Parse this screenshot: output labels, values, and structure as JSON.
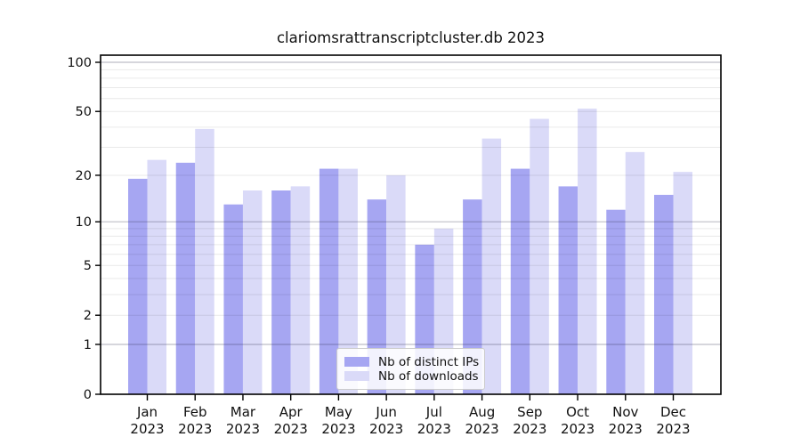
{
  "chart_data": {
    "type": "bar",
    "title": "clariomsrattranscriptcluster.db 2023",
    "categories": [
      "Jan",
      "Feb",
      "Mar",
      "Apr",
      "May",
      "Jun",
      "Jul",
      "Aug",
      "Sep",
      "Oct",
      "Nov",
      "Dec"
    ],
    "x_tick_year": "2023",
    "series": [
      {
        "name": "Nb of distinct IPs",
        "key": "distinct-ips",
        "color": "#a6a6f2",
        "values": [
          19,
          24,
          13,
          16,
          22,
          14,
          7,
          14,
          22,
          17,
          12,
          15
        ]
      },
      {
        "name": "Nb of downloads",
        "key": "downloads",
        "color": "#dadaf8",
        "values": [
          25,
          39,
          16,
          17,
          22,
          20,
          9,
          34,
          45,
          52,
          28,
          21
        ]
      }
    ],
    "xlabel": "",
    "ylabel": "",
    "yscale": "log1p",
    "ylim": [
      0,
      111
    ],
    "yticks": [
      100,
      50,
      20,
      10,
      5,
      2,
      1,
      0
    ],
    "minor_gridlines": [
      2,
      3,
      4,
      5,
      6,
      7,
      8,
      9,
      20,
      30,
      40,
      50,
      60,
      70,
      80,
      90
    ],
    "major_gridlines": [
      1,
      10,
      100
    ],
    "grid": "on",
    "legend_position": "bottom-center"
  },
  "colors": {
    "distinct_ips_bar": "#a6a6f2",
    "downloads_bar": "#dadaf8",
    "axis": "#000000",
    "minor_grid": "rgba(0,0,0,0.085)",
    "major_grid": "rgba(40,40,70,0.30)",
    "background": "#ffffff"
  }
}
